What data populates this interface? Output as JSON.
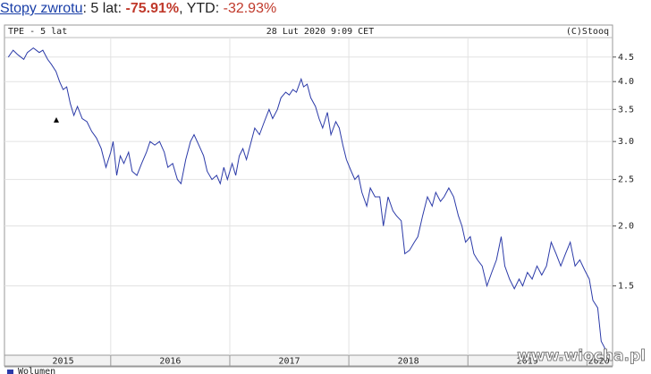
{
  "header": {
    "link": "Stopy zwrotu",
    "label_period": ": 5 lat: ",
    "return_period": "-75.91%",
    "label_ytd": ", YTD: ",
    "return_ytd": "-32.93%"
  },
  "watermark": "www.wiocha.pl",
  "chart_data": {
    "type": "line",
    "log_scale": true,
    "grid": true,
    "color": "#2b3aa8",
    "title": "TPE - 5 lat",
    "subtitle": "28 Lut 2020 9:09 CET",
    "source": "(C)Stooq",
    "volume_label": "Wolumen",
    "xlim": [
      2015.13,
      2020.2
    ],
    "xticks": [
      2016,
      2017,
      2018,
      2019,
      2020
    ],
    "year_labels": [
      {
        "value": 2015.6,
        "label": "2015"
      },
      {
        "value": 2016.5,
        "label": "2016"
      },
      {
        "value": 2017.5,
        "label": "2017"
      },
      {
        "value": 2018.5,
        "label": "2018"
      },
      {
        "value": 2019.5,
        "label": "2019"
      },
      {
        "value": 2020.1,
        "label": "2020"
      }
    ],
    "ylim": [
      1.08,
      4.92
    ],
    "yticks": [
      {
        "value": 1.5,
        "label": "1.5"
      },
      {
        "value": 2,
        "label": "2.0"
      },
      {
        "value": 2.5,
        "label": "2.5"
      },
      {
        "value": 3,
        "label": "3.0"
      },
      {
        "value": 3.5,
        "label": "3.5"
      },
      {
        "value": 4,
        "label": "4.0"
      },
      {
        "value": 4.5,
        "label": "4.5"
      }
    ],
    "x": [
      2015.14,
      2015.18,
      2015.22,
      2015.27,
      2015.3,
      2015.35,
      2015.4,
      2015.43,
      2015.47,
      2015.5,
      2015.54,
      2015.57,
      2015.6,
      2015.63,
      2015.66,
      2015.69,
      2015.72,
      2015.76,
      2015.8,
      2015.84,
      2015.88,
      2015.92,
      2015.96,
      2016.0,
      2016.02,
      2016.05,
      2016.08,
      2016.11,
      2016.15,
      2016.18,
      2016.22,
      2016.26,
      2016.3,
      2016.33,
      2016.37,
      2016.41,
      2016.45,
      2016.48,
      2016.52,
      2016.56,
      2016.59,
      2016.63,
      2016.67,
      2016.7,
      2016.74,
      2016.78,
      2016.81,
      2016.85,
      2016.89,
      2016.92,
      2016.95,
      2016.98,
      2017.02,
      2017.05,
      2017.08,
      2017.11,
      2017.14,
      2017.18,
      2017.21,
      2017.25,
      2017.29,
      2017.33,
      2017.36,
      2017.4,
      2017.43,
      2017.47,
      2017.5,
      2017.53,
      2017.56,
      2017.6,
      2017.62,
      2017.65,
      2017.68,
      2017.72,
      2017.75,
      2017.78,
      2017.82,
      2017.85,
      2017.89,
      2017.92,
      2017.95,
      2017.98,
      2018.02,
      2018.05,
      2018.08,
      2018.11,
      2018.15,
      2018.18,
      2018.22,
      2018.26,
      2018.29,
      2018.33,
      2018.37,
      2018.4,
      2018.44,
      2018.47,
      2018.51,
      2018.55,
      2018.58,
      2018.62,
      2018.66,
      2018.7,
      2018.73,
      2018.77,
      2018.8,
      2018.84,
      2018.88,
      2018.92,
      2018.95,
      2018.98,
      2019.02,
      2019.05,
      2019.08,
      2019.12,
      2019.16,
      2019.2,
      2019.24,
      2019.28,
      2019.31,
      2019.35,
      2019.39,
      2019.43,
      2019.46,
      2019.5,
      2019.54,
      2019.58,
      2019.62,
      2019.66,
      2019.7,
      2019.74,
      2019.78,
      2019.82,
      2019.86,
      2019.9,
      2019.94,
      2019.98,
      2020.02,
      2020.05,
      2020.09,
      2020.12,
      2020.16
    ],
    "values": [
      4.5,
      4.65,
      4.55,
      4.45,
      4.6,
      4.7,
      4.6,
      4.65,
      4.45,
      4.35,
      4.2,
      4.0,
      3.85,
      3.9,
      3.6,
      3.4,
      3.55,
      3.35,
      3.3,
      3.15,
      3.05,
      2.9,
      2.65,
      2.85,
      3.0,
      2.55,
      2.8,
      2.7,
      2.85,
      2.6,
      2.55,
      2.7,
      2.85,
      3.0,
      2.95,
      3.0,
      2.85,
      2.65,
      2.7,
      2.5,
      2.45,
      2.75,
      3.0,
      3.1,
      2.95,
      2.8,
      2.6,
      2.5,
      2.55,
      2.45,
      2.65,
      2.5,
      2.7,
      2.55,
      2.8,
      2.9,
      2.75,
      3.0,
      3.2,
      3.1,
      3.3,
      3.5,
      3.35,
      3.5,
      3.7,
      3.8,
      3.75,
      3.85,
      3.8,
      4.05,
      3.9,
      3.95,
      3.7,
      3.55,
      3.35,
      3.2,
      3.45,
      3.1,
      3.3,
      3.2,
      2.95,
      2.75,
      2.6,
      2.5,
      2.55,
      2.35,
      2.2,
      2.4,
      2.3,
      2.3,
      2.0,
      2.3,
      2.15,
      2.1,
      2.05,
      1.75,
      1.78,
      1.85,
      1.9,
      2.1,
      2.3,
      2.2,
      2.35,
      2.25,
      2.3,
      2.4,
      2.3,
      2.1,
      2.0,
      1.85,
      1.9,
      1.75,
      1.7,
      1.65,
      1.5,
      1.6,
      1.7,
      1.9,
      1.65,
      1.55,
      1.48,
      1.55,
      1.5,
      1.6,
      1.55,
      1.65,
      1.58,
      1.65,
      1.85,
      1.75,
      1.65,
      1.75,
      1.85,
      1.65,
      1.7,
      1.62,
      1.55,
      1.4,
      1.35,
      1.15,
      1.1
    ]
  }
}
